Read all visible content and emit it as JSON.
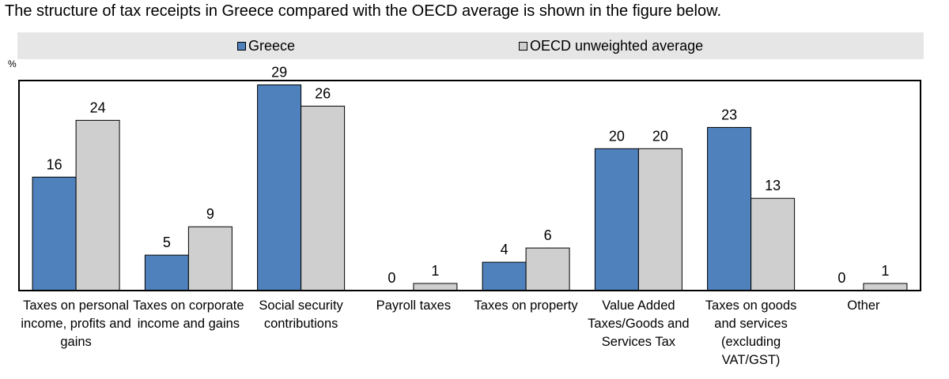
{
  "caption": "The structure of tax receipts in Greece compared with the OECD average is shown in the figure below.",
  "colors": {
    "greece": "#4f81bd",
    "oecd": "#cfcfcf",
    "legend_bg": "#e6e6e6"
  },
  "chart_data": {
    "type": "bar",
    "ylabel": "%",
    "ylim": [
      0,
      29.5
    ],
    "legend": "top",
    "categories": [
      "Taxes on personal income, profits and gains",
      "Taxes on corporate income and gains",
      "Social security contributions",
      "Payroll taxes",
      "Taxes on property",
      "Value Added Taxes/Goods and Services Tax",
      "Taxes on goods and services (excluding VAT/GST)",
      "Other"
    ],
    "series": [
      {
        "name": "Greece",
        "values": [
          16,
          5,
          29,
          0,
          4,
          20,
          23,
          0
        ]
      },
      {
        "name": "OECD unweighted average",
        "values": [
          24,
          9,
          26,
          1,
          6,
          20,
          13,
          1
        ]
      }
    ]
  }
}
